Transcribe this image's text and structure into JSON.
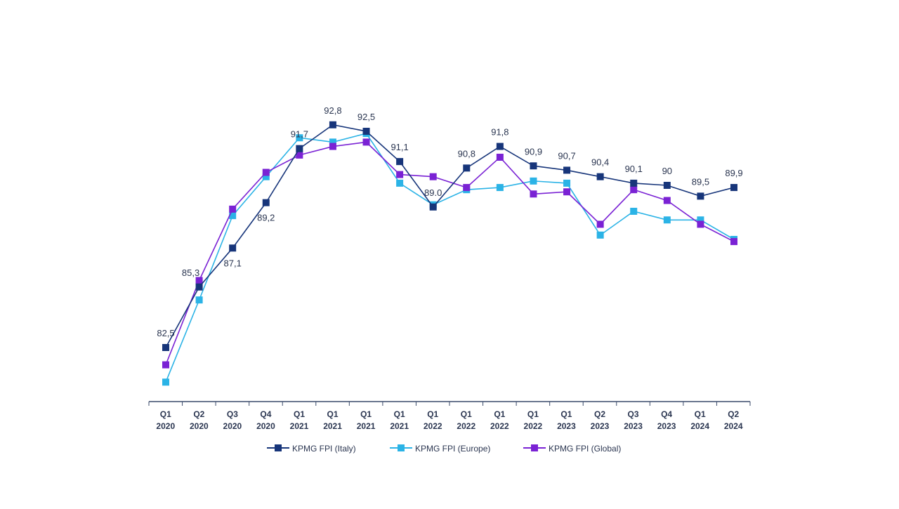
{
  "chart_data": {
    "type": "line",
    "title": "",
    "xlabel": "",
    "ylabel": "",
    "ylim": [
      80,
      94
    ],
    "grid": false,
    "legend_position": "bottom",
    "categories": [
      [
        "Q1",
        "2020"
      ],
      [
        "Q2",
        "2020"
      ],
      [
        "Q3",
        "2020"
      ],
      [
        "Q4",
        "2020"
      ],
      [
        "Q1",
        "2021"
      ],
      [
        "Q1",
        "2021"
      ],
      [
        "Q1",
        "2021"
      ],
      [
        "Q1",
        "2021"
      ],
      [
        "Q1",
        "2022"
      ],
      [
        "Q1",
        "2022"
      ],
      [
        "Q1",
        "2022"
      ],
      [
        "Q1",
        "2022"
      ],
      [
        "Q1",
        "2023"
      ],
      [
        "Q2",
        "2023"
      ],
      [
        "Q3",
        "2023"
      ],
      [
        "Q4",
        "2023"
      ],
      [
        "Q1",
        "2024"
      ],
      [
        "Q2",
        "2024"
      ]
    ],
    "series": [
      {
        "name": "KPMG FPI (Italy)",
        "color": "#17357a",
        "values": [
          82.5,
          85.3,
          87.1,
          89.2,
          91.7,
          92.8,
          92.5,
          91.1,
          89.0,
          90.8,
          91.8,
          90.9,
          90.7,
          90.4,
          90.1,
          90,
          89.5,
          89.9
        ],
        "labels": [
          "82,5",
          "85,3",
          "87,1",
          "89,2",
          "91,7",
          "92,8",
          "92,5",
          "91,1",
          "89.0",
          "90,8",
          "91,8",
          "90,9",
          "90,7",
          "90,4",
          "90,1",
          "90",
          "89,5",
          "89,9"
        ]
      },
      {
        "name": "KPMG FPI (Europe)",
        "color": "#2bb3e6",
        "values": [
          80.9,
          84.7,
          88.6,
          90.4,
          92.2,
          92.0,
          92.4,
          90.1,
          89.1,
          89.8,
          89.9,
          90.2,
          90.1,
          87.7,
          88.8,
          88.4,
          88.4,
          87.5
        ]
      },
      {
        "name": "KPMG FPI (Global)",
        "color": "#7a22d4",
        "values": [
          81.7,
          85.6,
          88.9,
          90.6,
          91.4,
          91.8,
          92.0,
          90.5,
          90.4,
          89.9,
          91.3,
          89.6,
          89.7,
          88.2,
          89.8,
          89.3,
          88.2,
          87.4
        ]
      }
    ]
  }
}
